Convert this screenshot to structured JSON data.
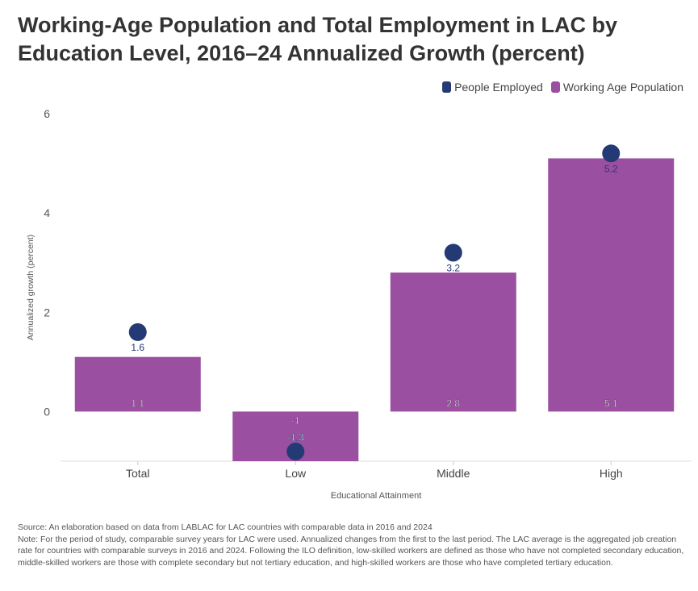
{
  "title": "Working-Age Population and Total Employment in LAC by Education Level, 2016–24 Annualized Growth (percent)",
  "colors": {
    "employed": "#233a74",
    "population": "#9b4fa0"
  },
  "chart_data": {
    "type": "bar",
    "title": "Working-Age Population and Total Employment in LAC by Education Level, 2016–24 Annualized Growth (percent)",
    "xlabel": "Educational Attainment",
    "ylabel": "Annualized growth (percent)",
    "ylim": [
      -1,
      6
    ],
    "yticks": [
      0,
      2,
      4,
      6
    ],
    "categories": [
      "Total",
      "Low",
      "Middle",
      "High"
    ],
    "legend_position": "top-right",
    "series": [
      {
        "name": "People Employed",
        "mark": "dot",
        "values": [
          1.6,
          -1.3,
          3.2,
          5.2
        ],
        "labels": [
          "1.6",
          "-1.3",
          "3.2",
          "5.2"
        ]
      },
      {
        "name": "Working Age Population",
        "mark": "bar",
        "values": [
          1.1,
          -1,
          2.8,
          5.1
        ],
        "labels": [
          "1.1",
          "-1",
          "2.8",
          "5.1"
        ]
      }
    ]
  },
  "notes": {
    "source": "Source: An elaboration based on data from LABLAC for LAC countries with comparable data in 2016 and 2024",
    "note": "Note: For the period of study, comparable survey years for LAC were used. Annualized changes from the first to the last period. The LAC average is the aggregated job creation rate for countries with comparable surveys in 2016 and 2024. Following the ILO definition, low-skilled workers are defined as those who have not completed secondary education, middle-skilled workers are those with complete secondary but not tertiary education, and high-skilled workers are those who have completed tertiary education."
  }
}
